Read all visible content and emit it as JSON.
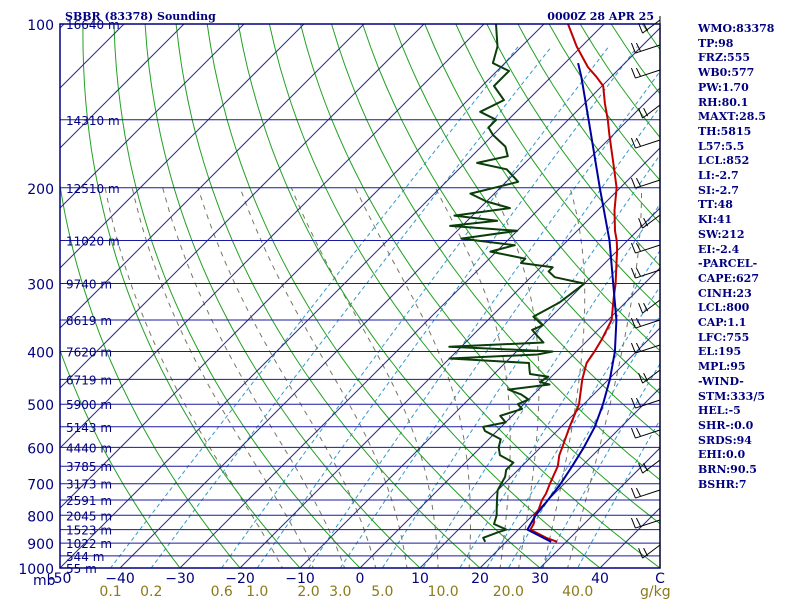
{
  "chart_data": {
    "type": "line",
    "title": "SBBR (83378) Sounding",
    "time": "0000Z 28 APR 25",
    "p_unit": "mb",
    "mix_unit": "g/kg",
    "xlim": [
      -50,
      50
    ],
    "plim": [
      1000,
      100
    ],
    "pressure_ticks": [
      100,
      200,
      300,
      400,
      500,
      600,
      700,
      800,
      900,
      1000
    ],
    "temp_ticks": [
      -50,
      -40,
      -30,
      -20,
      -10,
      0,
      10,
      20,
      30,
      40
    ],
    "temp_tick_labels": [
      "-50",
      "−40",
      "−30",
      "−20",
      "−10",
      "0",
      "10",
      "20",
      "30",
      "40"
    ],
    "temp_last_label": "C",
    "mix_ratio_labels": [
      {
        "v": 0.1,
        "label": "0.1"
      },
      {
        "v": 0.2,
        "label": "0.2"
      },
      {
        "v": 0.6,
        "label": "0.6"
      },
      {
        "v": 1.0,
        "label": "1.0"
      },
      {
        "v": 2.0,
        "label": "2.0"
      },
      {
        "v": 3.0,
        "label": "3.0"
      },
      {
        "v": 5.0,
        "label": "5.0"
      },
      {
        "v": 10.0,
        "label": "10.0"
      },
      {
        "v": 20.0,
        "label": "20.0"
      },
      {
        "v": 40.0,
        "label": "40.0"
      }
    ],
    "heights": [
      {
        "p": 100,
        "label": "16640 m"
      },
      {
        "p": 150,
        "label": "14310 m"
      },
      {
        "p": 200,
        "label": "12510 m"
      },
      {
        "p": 250,
        "label": "11020 m"
      },
      {
        "p": 300,
        "label": "9740 m"
      },
      {
        "p": 350,
        "label": "8619 m"
      },
      {
        "p": 400,
        "label": "7620 m"
      },
      {
        "p": 450,
        "label": "6719 m"
      },
      {
        "p": 500,
        "label": "5900 m"
      },
      {
        "p": 550,
        "label": "5143 m"
      },
      {
        "p": 600,
        "label": "4440 m"
      },
      {
        "p": 650,
        "label": "3785 m"
      },
      {
        "p": 700,
        "label": "3173 m"
      },
      {
        "p": 750,
        "label": "2591 m"
      },
      {
        "p": 800,
        "label": "2045 m"
      },
      {
        "p": 850,
        "label": "1523 m"
      },
      {
        "p": 900,
        "label": "1022 m"
      },
      {
        "p": 950,
        "label": "544 m"
      },
      {
        "p": 1000,
        "label": "55 m"
      }
    ],
    "series": [
      {
        "color": "#c00000",
        "points": [
          [
            895,
            28.5
          ],
          [
            880,
            26
          ],
          [
            850,
            22
          ],
          [
            830,
            21.6
          ],
          [
            800,
            20.3
          ],
          [
            780,
            20
          ],
          [
            750,
            19
          ],
          [
            730,
            18.6
          ],
          [
            700,
            17.6
          ],
          [
            650,
            16
          ],
          [
            620,
            14.4
          ],
          [
            600,
            13.6
          ],
          [
            550,
            11.4
          ],
          [
            500,
            9.2
          ],
          [
            450,
            5.6
          ],
          [
            420,
            3.6
          ],
          [
            400,
            3
          ],
          [
            380,
            2.2
          ],
          [
            350,
            0.6
          ],
          [
            320,
            -2.6
          ],
          [
            300,
            -4.8
          ],
          [
            280,
            -7.4
          ],
          [
            260,
            -10.2
          ],
          [
            250,
            -11.8
          ],
          [
            240,
            -13.7
          ],
          [
            220,
            -17.2
          ],
          [
            200,
            -20.6
          ],
          [
            180,
            -25.3
          ],
          [
            160,
            -30.6
          ],
          [
            150,
            -33.4
          ],
          [
            140,
            -36.6
          ],
          [
            130,
            -39.8
          ],
          [
            125,
            -42.5
          ],
          [
            120,
            -45.5
          ],
          [
            110,
            -50.8
          ],
          [
            100,
            -56
          ]
        ]
      },
      {
        "color": "#0a3d0a",
        "points": [
          [
            895,
            16.5
          ],
          [
            880,
            15.5
          ],
          [
            860,
            17
          ],
          [
            850,
            18
          ],
          [
            830,
            15
          ],
          [
            800,
            14
          ],
          [
            780,
            13
          ],
          [
            750,
            11.5
          ],
          [
            720,
            10
          ],
          [
            700,
            9.5
          ],
          [
            680,
            9
          ],
          [
            660,
            8
          ],
          [
            640,
            8
          ],
          [
            620,
            4.5
          ],
          [
            600,
            3
          ],
          [
            580,
            2
          ],
          [
            560,
            -2
          ],
          [
            550,
            -3
          ],
          [
            540,
            0
          ],
          [
            525,
            -2
          ],
          [
            510,
            0.5
          ],
          [
            500,
            -1
          ],
          [
            490,
            0
          ],
          [
            480,
            -2
          ],
          [
            470,
            -5
          ],
          [
            460,
            1
          ],
          [
            455,
            -1
          ],
          [
            445,
            -0.5
          ],
          [
            440,
            -4
          ],
          [
            430,
            -5
          ],
          [
            420,
            -6
          ],
          [
            412,
            -20
          ],
          [
            405,
            -6
          ],
          [
            400,
            -4
          ],
          [
            392,
            -22
          ],
          [
            385,
            -7
          ],
          [
            375,
            -9
          ],
          [
            365,
            -11
          ],
          [
            358,
            -10
          ],
          [
            345,
            -13
          ],
          [
            335,
            -12
          ],
          [
            325,
            -11
          ],
          [
            300,
            -10
          ],
          [
            292,
            -16
          ],
          [
            285,
            -18
          ],
          [
            280,
            -18
          ],
          [
            275,
            -24
          ],
          [
            270,
            -24
          ],
          [
            262,
            -31
          ],
          [
            255,
            -28
          ],
          [
            248,
            -38
          ],
          [
            240,
            -30
          ],
          [
            235,
            -42
          ],
          [
            230,
            -35
          ],
          [
            225,
            -43
          ],
          [
            218,
            -35
          ],
          [
            212,
            -40
          ],
          [
            205,
            -44
          ],
          [
            200,
            -41
          ],
          [
            195,
            -38
          ],
          [
            185,
            -42
          ],
          [
            180,
            -48
          ],
          [
            175,
            -44
          ],
          [
            168,
            -46
          ],
          [
            160,
            -50
          ],
          [
            155,
            -52
          ],
          [
            150,
            -52
          ],
          [
            145,
            -56
          ],
          [
            138,
            -54
          ],
          [
            130,
            -58
          ],
          [
            122,
            -58
          ],
          [
            118,
            -62
          ],
          [
            110,
            -64
          ],
          [
            100,
            -68
          ]
        ]
      },
      {
        "color": "#0000a0",
        "points": [
          [
            895,
            27.5
          ],
          [
            850,
            21.5
          ],
          [
            800,
            20.5
          ],
          [
            750,
            20
          ],
          [
            700,
            19.4
          ],
          [
            650,
            18.4
          ],
          [
            600,
            17.2
          ],
          [
            550,
            15.6
          ],
          [
            500,
            13.2
          ],
          [
            450,
            10.2
          ],
          [
            400,
            6.4
          ],
          [
            350,
            1.4
          ],
          [
            300,
            -5.2
          ],
          [
            250,
            -13
          ],
          [
            200,
            -23.4
          ],
          [
            150,
            -36.6
          ],
          [
            125,
            -45
          ],
          [
            118,
            -47.8
          ]
        ]
      }
    ]
  },
  "panel": {
    "lines": [
      "WMO:83378",
      "TP:98",
      "FRZ:555",
      "WB0:577",
      "PW:1.70",
      "RH:80.1",
      "MAXT:28.5",
      "TH:5815",
      "L57:5.5",
      "LCL:852",
      "LI:-2.7",
      "SI:-2.7",
      "TT:48",
      "KI:41",
      "SW:212",
      "EI:-2.4",
      "-PARCEL-",
      "CAPE:627",
      "CINH:23",
      "LCL:800",
      "CAP:1.1",
      "LFC:755",
      "EL:195",
      "MPL:95",
      "-WIND-",
      "STM:333/5",
      "HEL:-5",
      "SHR-:0.0",
      "SRDS:94",
      "EHI:0.0",
      "BRN:90.5",
      "BSHR:7"
    ]
  },
  "colors": {
    "frame": "#000080",
    "isobar": "#1a1aa0",
    "isotherm": "#2a2a90",
    "dry_adiabat": "#22a022",
    "mixing_ratio": "#3399cc",
    "moist_adiabat": "#777766",
    "mix_label": "#8a7a1a"
  }
}
